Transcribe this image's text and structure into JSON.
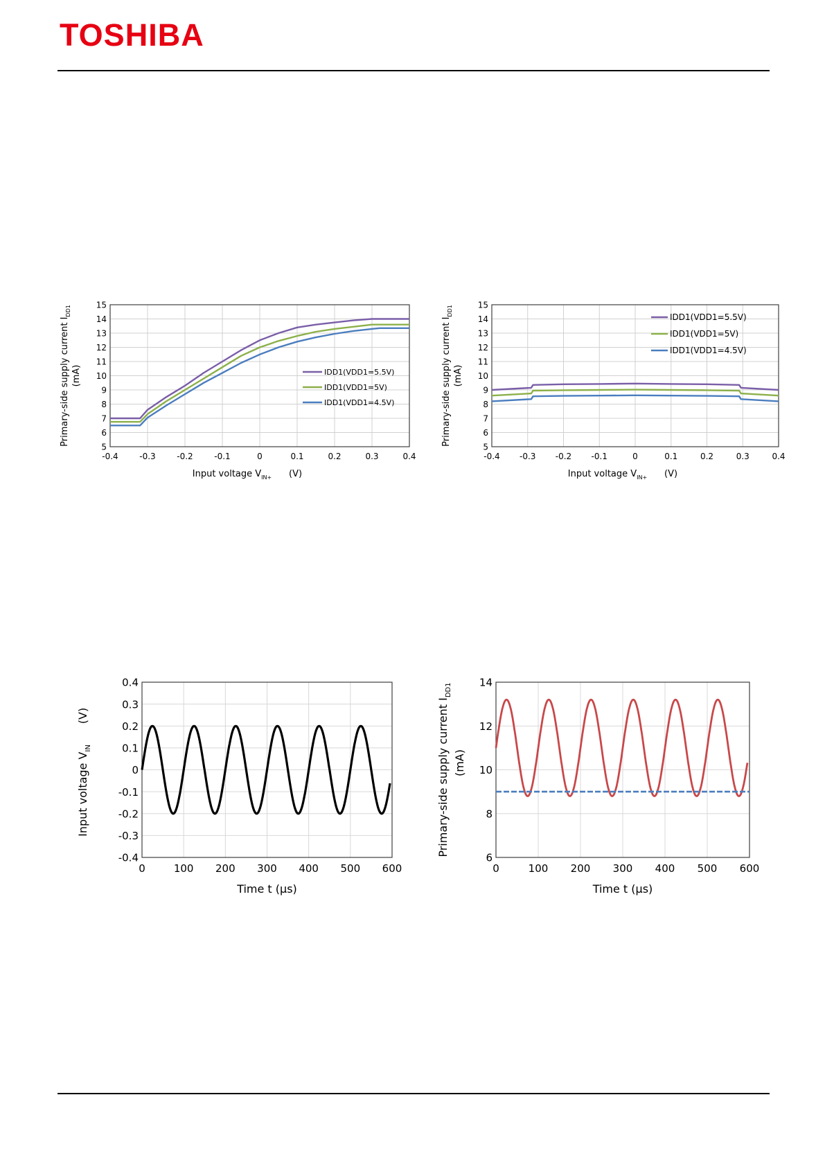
{
  "header": {
    "logo_text": "TOSHIBA"
  },
  "colors": {
    "logo": "#e60012",
    "vdd55": "#7a5ea8",
    "vdd5": "#8cb04a",
    "vdd45": "#4a7dbf",
    "vin_wave": "#000000",
    "idd_active": "#c8484a",
    "idd_quiescent": "#4a7dbf"
  },
  "chart_data": [
    {
      "type": "line",
      "xlabel": "Input voltage  V",
      "xlabel_sub": "IN+",
      "xunit": "(V)",
      "ylabel_line1": "Primary-side supply current  I",
      "ylabel_sub": "DD1",
      "ylabel_line2": "(mA)",
      "xlim": [
        -0.4,
        0.4
      ],
      "ylim": [
        5,
        15
      ],
      "xticks": [
        "-0.4",
        "-0.3",
        "-0.2",
        "-0.1",
        "0",
        "0.1",
        "0.2",
        "0.3",
        "0.4"
      ],
      "yticks": [
        "5",
        "6",
        "7",
        "8",
        "9",
        "10",
        "11",
        "12",
        "13",
        "14",
        "15"
      ],
      "grid": true,
      "legend": "bottom-right",
      "x": [
        -0.4,
        -0.32,
        -0.3,
        -0.25,
        -0.2,
        -0.15,
        -0.1,
        -0.05,
        0,
        0.05,
        0.1,
        0.15,
        0.2,
        0.25,
        0.3,
        0.32,
        0.4
      ],
      "series": [
        {
          "name": "IDD1(VDD1=5.5V)",
          "color": "#7a5ea8",
          "values": [
            7.0,
            7.0,
            7.6,
            8.5,
            9.3,
            10.2,
            11.0,
            11.8,
            12.5,
            13.0,
            13.4,
            13.6,
            13.75,
            13.9,
            14.0,
            14.0,
            14.0
          ]
        },
        {
          "name": "IDD1(VDD1=5V)",
          "color": "#8cb04a",
          "values": [
            6.75,
            6.75,
            7.3,
            8.2,
            9.0,
            9.8,
            10.6,
            11.4,
            12.0,
            12.45,
            12.8,
            13.1,
            13.3,
            13.45,
            13.6,
            13.6,
            13.6
          ]
        },
        {
          "name": "IDD1(VDD1=4.5V)",
          "color": "#4a7dbf",
          "values": [
            6.5,
            6.5,
            7.05,
            7.9,
            8.7,
            9.5,
            10.2,
            10.9,
            11.5,
            12.0,
            12.4,
            12.7,
            12.95,
            13.15,
            13.3,
            13.35,
            13.35
          ]
        }
      ]
    },
    {
      "type": "line",
      "xlabel": "Input voltage  V",
      "xlabel_sub": "IN+",
      "xunit": "(V)",
      "ylabel_line1": "Primary-side supply current  I",
      "ylabel_sub": "DD1",
      "ylabel_line2": "(mA)",
      "xlim": [
        -0.4,
        0.4
      ],
      "ylim": [
        5,
        15
      ],
      "xticks": [
        "-0.4",
        "-0.3",
        "-0.2",
        "-0.1",
        "0",
        "0.1",
        "0.2",
        "0.3",
        "0.4"
      ],
      "yticks": [
        "5",
        "6",
        "7",
        "8",
        "9",
        "10",
        "11",
        "12",
        "13",
        "14",
        "15"
      ],
      "grid": true,
      "legend": "top-right",
      "x": [
        -0.4,
        -0.29,
        -0.285,
        -0.2,
        -0.1,
        0,
        0.1,
        0.2,
        0.29,
        0.295,
        0.4
      ],
      "series": [
        {
          "name": "IDD1(VDD1=5.5V)",
          "color": "#7a5ea8",
          "values": [
            9.0,
            9.15,
            9.35,
            9.4,
            9.42,
            9.45,
            9.42,
            9.4,
            9.35,
            9.15,
            9.0
          ]
        },
        {
          "name": "IDD1(VDD1=5V)",
          "color": "#8cb04a",
          "values": [
            8.6,
            8.75,
            8.95,
            8.98,
            9.0,
            9.02,
            9.0,
            8.98,
            8.95,
            8.75,
            8.6
          ]
        },
        {
          "name": "IDD1(VDD1=4.5V)",
          "color": "#4a7dbf",
          "values": [
            8.2,
            8.35,
            8.55,
            8.58,
            8.6,
            8.62,
            8.6,
            8.58,
            8.55,
            8.35,
            8.2
          ]
        }
      ]
    },
    {
      "type": "line",
      "xlabel": "Time  t  (µs)",
      "ylabel": "Input voltage  V",
      "ylabel_sub": "IN",
      "yunit": "(V)",
      "xlim": [
        0,
        600
      ],
      "ylim": [
        -0.4,
        0.4
      ],
      "xticks": [
        "0",
        "100",
        "200",
        "300",
        "400",
        "500",
        "600"
      ],
      "yticks": [
        "-0.4",
        "-0.3",
        "-0.2",
        "-0.1",
        "0",
        "0.1",
        "0.2",
        "0.3",
        "0.4"
      ],
      "grid": true,
      "series": [
        {
          "color": "#000000",
          "function": "sine",
          "amplitude": 0.2,
          "period": 100,
          "phase": 0,
          "offset": 0,
          "x_range": [
            0,
            595
          ]
        }
      ]
    },
    {
      "type": "line",
      "xlabel": "Time  t  (µs)",
      "ylabel": "Primary-side supply current  I",
      "ylabel_sub": "DD1",
      "ylabel_line2": "(mA)",
      "xlim": [
        0,
        600
      ],
      "ylim": [
        6,
        14
      ],
      "xticks": [
        "0",
        "100",
        "200",
        "300",
        "400",
        "500",
        "600"
      ],
      "yticks": [
        "6",
        "8",
        "10",
        "12",
        "14"
      ],
      "grid": true,
      "series": [
        {
          "color": "#c8484a",
          "function": "sine",
          "amplitude": 2.2,
          "period": 100,
          "phase": 0,
          "offset": 11.0,
          "x_range": [
            0,
            595
          ]
        },
        {
          "color": "#4a7dbf",
          "function": "constant",
          "value": 9.0,
          "x_range": [
            0,
            600
          ]
        }
      ]
    }
  ]
}
